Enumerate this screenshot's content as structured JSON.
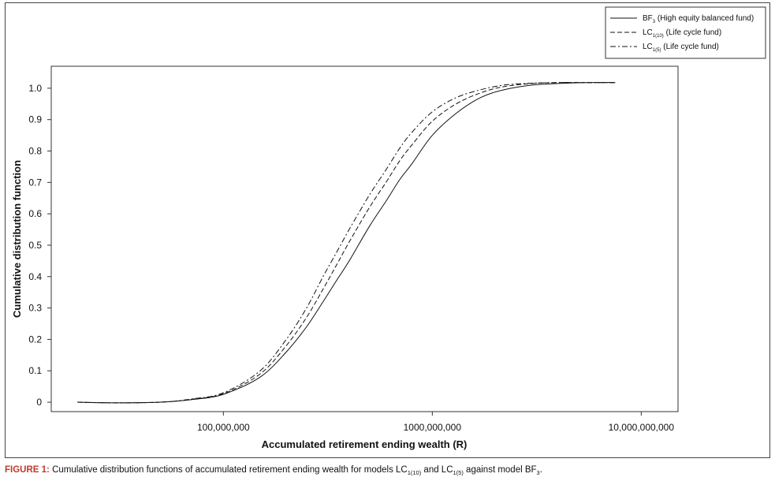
{
  "chart_data": {
    "type": "line",
    "xscale": "log",
    "xlabel": "Accumulated retirement ending wealth (R)",
    "ylabel": "Cumulative distribution function",
    "xlim": [
      15000000,
      15000000000
    ],
    "ylim": [
      -0.03,
      1.07
    ],
    "x_ticks": [
      100000000,
      1000000000,
      10000000000
    ],
    "x_tick_labels": [
      "100,000,000",
      "1000,000,000",
      "10,000,000,000"
    ],
    "y_ticks": [
      0,
      0.1,
      0.2,
      0.3,
      0.4,
      0.5,
      0.6,
      0.7,
      0.8,
      0.9,
      1.0
    ],
    "y_tick_labels": [
      "0",
      "0.1",
      "0.2",
      "0.3",
      "0.4",
      "0.5",
      "0.6",
      "0.7",
      "0.8",
      "0.9",
      "1.0"
    ],
    "grid": false,
    "legend_position": "top-right, outside plot area",
    "series": [
      {
        "id": "bf3",
        "legend_main": "BF",
        "legend_sub": "3",
        "legend_desc": " (High equity balanced fund)",
        "dash": "solid",
        "color": "#111111",
        "x": [
          20000000,
          30000000,
          50000000,
          70000000,
          100000000,
          150000000,
          200000000,
          250000000,
          300000000,
          350000000,
          400000000,
          500000000,
          600000000,
          700000000,
          800000000,
          1000000000,
          1300000000,
          1700000000,
          2200000000,
          3000000000,
          4000000000,
          5500000000,
          7500000000
        ],
        "y": [
          0.0,
          -0.002,
          0.0,
          0.008,
          0.025,
          0.08,
          0.16,
          0.24,
          0.32,
          0.39,
          0.45,
          0.56,
          0.64,
          0.71,
          0.76,
          0.85,
          0.92,
          0.97,
          0.995,
          1.01,
          1.015,
          1.018,
          1.018
        ]
      },
      {
        "id": "lc110",
        "legend_main": "LC",
        "legend_sub": "1(10)",
        "legend_desc": " (Life cycle fund)",
        "dash": "dashed",
        "color": "#111111",
        "x": [
          20000000,
          30000000,
          50000000,
          70000000,
          100000000,
          150000000,
          200000000,
          250000000,
          300000000,
          350000000,
          400000000,
          500000000,
          600000000,
          700000000,
          800000000,
          1000000000,
          1300000000,
          1700000000,
          2200000000,
          3000000000,
          4000000000,
          5500000000,
          7500000000
        ],
        "y": [
          0.0,
          -0.002,
          0.0,
          0.009,
          0.027,
          0.09,
          0.18,
          0.27,
          0.36,
          0.44,
          0.51,
          0.62,
          0.7,
          0.77,
          0.82,
          0.895,
          0.95,
          0.985,
          1.005,
          1.015,
          1.018,
          1.018,
          1.018
        ]
      },
      {
        "id": "lc15",
        "legend_main": "LC",
        "legend_sub": "1(5)",
        "legend_desc": " (Life cycle fund)",
        "dash": "dashdot",
        "color": "#111111",
        "x": [
          20000000,
          30000000,
          50000000,
          70000000,
          100000000,
          150000000,
          200000000,
          250000000,
          300000000,
          350000000,
          400000000,
          500000000,
          600000000,
          700000000,
          800000000,
          1000000000,
          1300000000,
          1700000000,
          2200000000,
          3000000000,
          4000000000,
          5500000000,
          7500000000
        ],
        "y": [
          0.0,
          -0.002,
          0.0,
          0.01,
          0.03,
          0.1,
          0.2,
          0.3,
          0.4,
          0.48,
          0.55,
          0.66,
          0.74,
          0.81,
          0.86,
          0.925,
          0.97,
          0.995,
          1.01,
          1.016,
          1.018,
          1.018,
          1.018
        ]
      }
    ]
  },
  "caption": {
    "label": "FIGURE 1:",
    "text_1": " Cumulative distribution functions of accumulated retirement ending wealth for models LC",
    "sub_1": "1(10)",
    "text_2": " and LC",
    "sub_2": "1(5)",
    "text_3": " against model BF",
    "sub_3": "3",
    "text_4": "."
  }
}
